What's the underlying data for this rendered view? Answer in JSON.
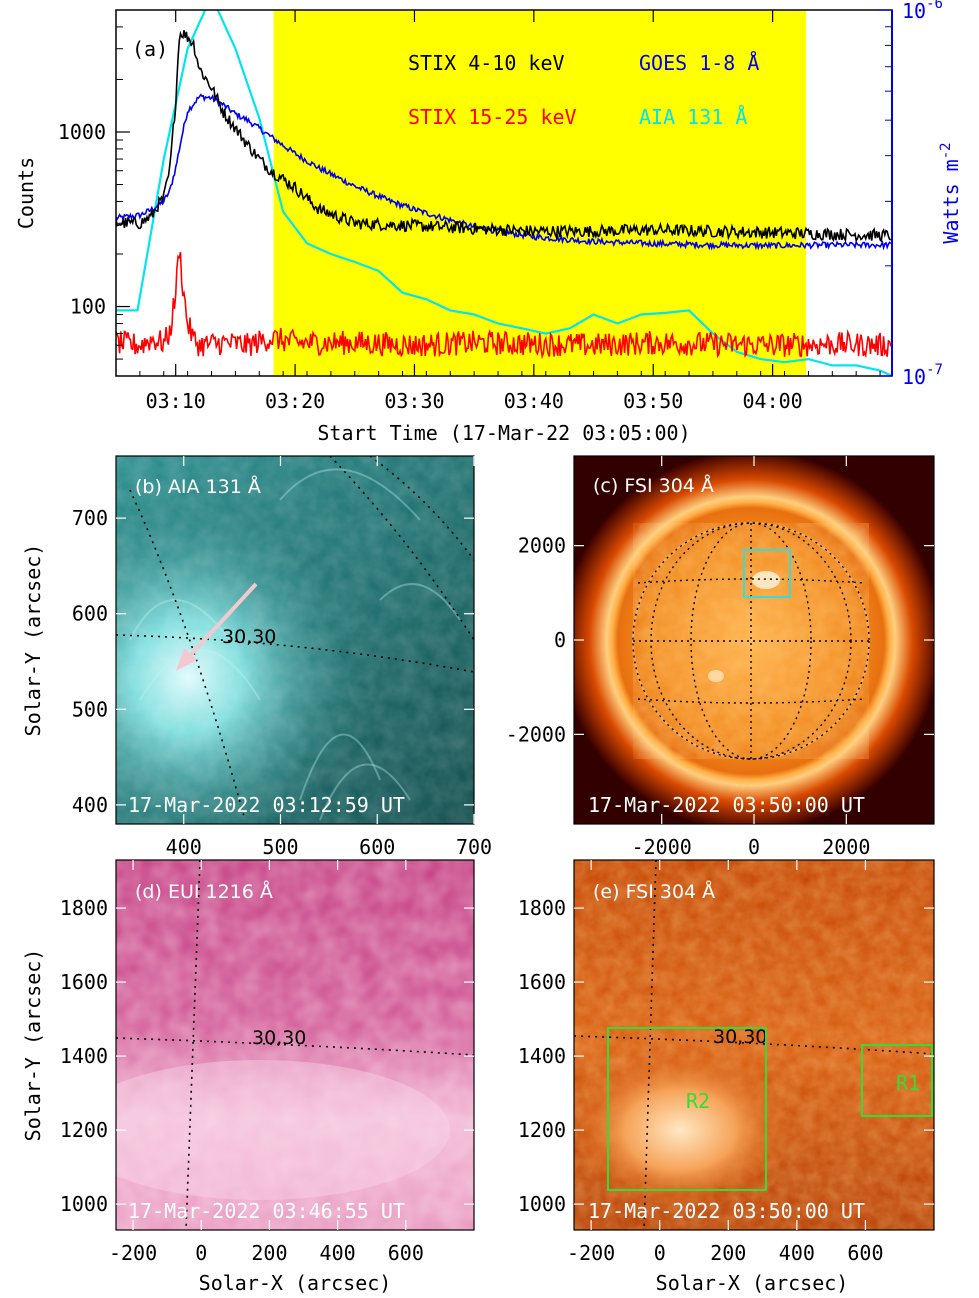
{
  "chart_data": [
    {
      "type": "line",
      "panel_label": "(a)",
      "xlabel": "Start Time (17-Mar-22 03:05:00)",
      "ylabel": "Counts",
      "ylabel_right": "Watts m-2",
      "ylabel_right_parts": {
        "base": "Watts m",
        "exp": "-2"
      },
      "x_ticks": [
        "03:10",
        "03:20",
        "03:30",
        "03:40",
        "03:50",
        "04:00"
      ],
      "x_tick_minutes": [
        10,
        20,
        30,
        40,
        50,
        60
      ],
      "xlim_minutes": [
        5,
        70
      ],
      "y_ticks": [
        "100",
        "1000"
      ],
      "y_tick_values": [
        100,
        1000
      ],
      "ylim": [
        40,
        5000
      ],
      "yscale": "log",
      "right_ticks": [
        "10-6",
        "10-7"
      ],
      "right_tick_parts": [
        {
          "base": "10",
          "exp": "-6"
        },
        {
          "base": "10",
          "exp": "-7"
        }
      ],
      "right_ylim": [
        1e-07,
        1e-06
      ],
      "right_yscale": "log",
      "shaded_interval_minutes": [
        18.2,
        62.8
      ],
      "shade_color": "#ffff00",
      "legend": [
        {
          "name": "STIX 4-10 keV",
          "color": "#000000"
        },
        {
          "name": "GOES 1-8 Å",
          "color": "#0000ee"
        },
        {
          "name": "STIX 15-25 keV",
          "color": "#ff0000"
        },
        {
          "name": "AIA 131 Å",
          "color": "#00e5ee"
        }
      ],
      "series": [
        {
          "name": "STIX 4-10 keV",
          "color": "#000000",
          "axis": "left",
          "x": [
            5,
            7,
            8,
            8.5,
            9,
            9.5,
            10,
            10.3,
            10.6,
            11,
            11.5,
            12,
            13,
            14,
            15,
            16,
            17,
            18,
            20,
            22,
            25,
            30,
            35,
            40,
            45,
            50,
            55,
            60,
            65,
            70
          ],
          "y": [
            300,
            300,
            330,
            380,
            420,
            600,
            1500,
            3600,
            3700,
            3500,
            3200,
            2300,
            1800,
            1300,
            1050,
            850,
            700,
            600,
            480,
            360,
            300,
            290,
            280,
            270,
            270,
            275,
            270,
            265,
            260,
            255
          ]
        },
        {
          "name": "STIX 15-25 keV",
          "color": "#ff0000",
          "axis": "left",
          "x": [
            5,
            7,
            8,
            9,
            9.5,
            10,
            10.3,
            10.6,
            11,
            11.5,
            12,
            14,
            16,
            18,
            20,
            25,
            30,
            35,
            40,
            45,
            50,
            55,
            60,
            65,
            70
          ],
          "y": [
            62,
            60,
            65,
            62,
            70,
            120,
            220,
            130,
            80,
            65,
            60,
            62,
            60,
            66,
            62,
            62,
            60,
            62,
            61,
            60,
            62,
            61,
            60,
            61,
            60
          ]
        },
        {
          "name": "GOES 1-8 Å",
          "color": "#0000ee",
          "axis": "right",
          "x": [
            5,
            7,
            8,
            9,
            9.5,
            10,
            10.5,
            11,
            12,
            13,
            14,
            15,
            16,
            17,
            18,
            20,
            22,
            25,
            28,
            30,
            35,
            40,
            45,
            50,
            55,
            60,
            65,
            70
          ],
          "y": [
            2.7e-07,
            2.75e-07,
            2.85e-07,
            3e-07,
            3.2e-07,
            3.7e-07,
            4.5e-07,
            5.3e-07,
            5.8e-07,
            5.75e-07,
            5.5e-07,
            5.2e-07,
            5e-07,
            4.75e-07,
            4.5e-07,
            4.05e-07,
            3.7e-07,
            3.3e-07,
            3e-07,
            2.85e-07,
            2.55e-07,
            2.4e-07,
            2.33e-07,
            2.3e-07,
            2.28e-07,
            2.27e-07,
            2.28e-07,
            2.28e-07
          ]
        },
        {
          "name": "AIA 131 Å",
          "color": "#00e5ee",
          "axis": "left",
          "x": [
            5,
            6.8,
            9,
            11,
            13,
            15,
            17,
            19,
            21,
            23,
            25,
            27,
            29,
            31,
            33,
            35,
            37,
            39,
            41,
            43,
            45,
            47,
            49,
            51,
            53,
            55,
            57,
            59,
            61,
            63,
            65,
            67,
            69,
            70
          ],
          "y": [
            95,
            95,
            700,
            3000,
            6000,
            3000,
            1200,
            350,
            230,
            200,
            180,
            160,
            120,
            110,
            95,
            90,
            80,
            75,
            70,
            75,
            90,
            80,
            90,
            92,
            95,
            70,
            55,
            50,
            48,
            50,
            46,
            46,
            43,
            40
          ]
        }
      ]
    },
    {
      "type": "heatmap",
      "panel_label": "(b)",
      "instrument": "AIA 131 Å",
      "timestamp": "17-Mar-2022 03:12:59 UT",
      "ylabel": "Solar-Y (arcsec)",
      "x_ticks": [
        "400",
        "500",
        "600",
        "700"
      ],
      "y_ticks": [
        "700",
        "600",
        "500",
        "400"
      ],
      "xlim": [
        330,
        700
      ],
      "ylim": [
        380,
        765
      ],
      "grid_label": "30,30",
      "colormap": "teal"
    },
    {
      "type": "heatmap",
      "panel_label": "(c)",
      "instrument": "FSI 304 Å",
      "timestamp": "17-Mar-2022 03:50:00 UT",
      "x_ticks": [
        "-2000",
        "0",
        "2000"
      ],
      "y_ticks": [
        "2000",
        "0",
        "-2000"
      ],
      "xlim": [
        -3900,
        3900
      ],
      "ylim": [
        -3900,
        3900
      ],
      "box_color": "#33dddd",
      "colormap": "red-orange"
    },
    {
      "type": "heatmap",
      "panel_label": "(d)",
      "instrument": "EUI 1216 Å",
      "timestamp": "17-Mar-2022 03:46:55 UT",
      "xlabel": "Solar-X (arcsec)",
      "ylabel": "Solar-Y (arcsec)",
      "x_ticks": [
        "-200",
        "0",
        "200",
        "400",
        "600"
      ],
      "y_ticks": [
        "1800",
        "1600",
        "1400",
        "1200",
        "1000"
      ],
      "xlim": [
        -250,
        800
      ],
      "ylim": [
        930,
        1930
      ],
      "grid_label": "30,30",
      "colormap": "magenta"
    },
    {
      "type": "heatmap",
      "panel_label": "(e)",
      "instrument": "FSI 304 Å",
      "timestamp": "17-Mar-2022 03:50:00 UT",
      "xlabel": "Solar-X (arcsec)",
      "x_ticks": [
        "-200",
        "0",
        "200",
        "400",
        "600"
      ],
      "y_ticks": [
        "1800",
        "1600",
        "1400",
        "1200",
        "1000"
      ],
      "xlim": [
        -250,
        800
      ],
      "ylim": [
        930,
        1930
      ],
      "grid_label": "30,30",
      "colormap": "red-orange",
      "regions": [
        {
          "name": "R2",
          "color": "#33dd33"
        },
        {
          "name": "R1",
          "color": "#33dd33"
        }
      ]
    }
  ]
}
